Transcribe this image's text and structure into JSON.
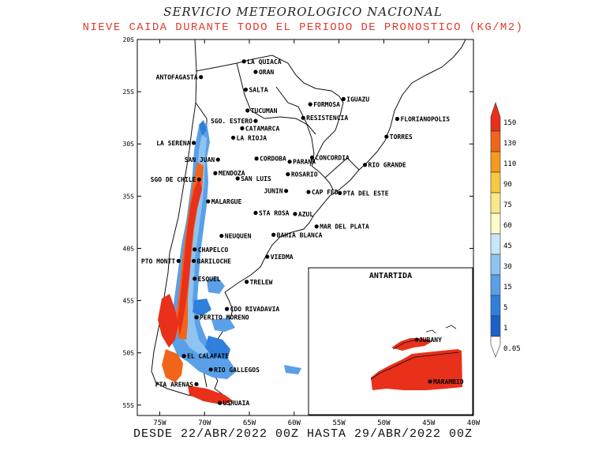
{
  "header": {
    "agency": "SERVICIO METEOROLOGICO NACIONAL",
    "product": "NIEVE CAIDA DURANTE TODO EL PERIODO DE PRONOSTICO (KG/M2)"
  },
  "footer": {
    "period": "DESDE 22/ABR/2022 00Z HASTA 29/ABR/2022 00Z"
  },
  "axes": {
    "lat_ticks": [
      "20S",
      "25S",
      "30S",
      "35S",
      "40S",
      "45S",
      "50S",
      "55S"
    ],
    "lon_ticks": [
      "75W",
      "70W",
      "65W",
      "60W",
      "55W",
      "50W",
      "45W",
      "40W"
    ]
  },
  "inset": {
    "title": "ANTARTIDA",
    "stations": [
      "JUBANY",
      "MARAMBIO"
    ]
  },
  "legend": {
    "labels": [
      "150",
      "130",
      "110",
      "90",
      "75",
      "60",
      "45",
      "30",
      "15",
      "5",
      "1",
      "0.05"
    ],
    "colors": [
      "#e8301a",
      "#f0651a",
      "#f59a1e",
      "#f9c843",
      "#fbe88a",
      "#fdfbc8",
      "#c8e6f8",
      "#8fc3f0",
      "#5aa0e8",
      "#2f7fdd",
      "#1c5fc8",
      "#ffffff"
    ]
  },
  "cities": [
    {
      "name": "ANTOFAGASTA",
      "lon": -70.4,
      "lat": -23.6
    },
    {
      "name": "LA QUIACA",
      "lon": -65.6,
      "lat": -22.1
    },
    {
      "name": "ORAN",
      "lon": -64.3,
      "lat": -23.1
    },
    {
      "name": "SALTA",
      "lon": -65.4,
      "lat": -24.8
    },
    {
      "name": "IGUAZU",
      "lon": -54.5,
      "lat": -25.7
    },
    {
      "name": "TUCUMAN",
      "lon": -65.2,
      "lat": -26.8
    },
    {
      "name": "FORMOSA",
      "lon": -58.2,
      "lat": -26.2
    },
    {
      "name": "SGO. ESTERO",
      "lon": -64.3,
      "lat": -27.8
    },
    {
      "name": "RESISTENCIA",
      "lon": -59.0,
      "lat": -27.5
    },
    {
      "name": "FLORIANOPOLIS",
      "lon": -48.5,
      "lat": -27.6
    },
    {
      "name": "CATAMARCA",
      "lon": -65.8,
      "lat": -28.5
    },
    {
      "name": "LA SERENA",
      "lon": -71.2,
      "lat": -29.9
    },
    {
      "name": "LA RIOJA",
      "lon": -66.8,
      "lat": -29.4
    },
    {
      "name": "TORRES",
      "lon": -49.7,
      "lat": -29.3
    },
    {
      "name": "CORDOBA",
      "lon": -64.2,
      "lat": -31.4
    },
    {
      "name": "CONCORDIA",
      "lon": -58.0,
      "lat": -31.3
    },
    {
      "name": "SAN JUAN",
      "lon": -68.5,
      "lat": -31.5
    },
    {
      "name": "PARANA",
      "lon": -60.5,
      "lat": -31.7
    },
    {
      "name": "RIO GRANDE",
      "lon": -52.1,
      "lat": -32.0
    },
    {
      "name": "MENDOZA",
      "lon": -68.8,
      "lat": -32.8
    },
    {
      "name": "ROSARIO",
      "lon": -60.7,
      "lat": -32.9
    },
    {
      "name": "SAN LUIS",
      "lon": -66.3,
      "lat": -33.3
    },
    {
      "name": "SGO DE CHILE",
      "lon": -70.6,
      "lat": -33.4
    },
    {
      "name": "JUNIN",
      "lon": -60.9,
      "lat": -34.5
    },
    {
      "name": "CAP FED",
      "lon": -58.4,
      "lat": -34.6
    },
    {
      "name": "PTA DEL ESTE",
      "lon": -54.9,
      "lat": -34.7
    },
    {
      "name": "MALARGUE",
      "lon": -69.6,
      "lat": -35.5
    },
    {
      "name": "STA ROSA",
      "lon": -64.3,
      "lat": -36.6
    },
    {
      "name": "AZUL",
      "lon": -59.9,
      "lat": -36.7
    },
    {
      "name": "MAR DEL PLATA",
      "lon": -57.5,
      "lat": -37.9
    },
    {
      "name": "NEUQUEN",
      "lon": -68.1,
      "lat": -38.8
    },
    {
      "name": "BAHIA BLANCA",
      "lon": -62.3,
      "lat": -38.7
    },
    {
      "name": "PTO MONTT",
      "lon": -72.9,
      "lat": -41.2
    },
    {
      "name": "CHAPELCO",
      "lon": -71.1,
      "lat": -40.1
    },
    {
      "name": "VIEDMA",
      "lon": -63.0,
      "lat": -40.8
    },
    {
      "name": "BARILOCHE",
      "lon": -71.2,
      "lat": -41.2
    },
    {
      "name": "ESQUEL",
      "lon": -71.1,
      "lat": -42.9
    },
    {
      "name": "TRELEW",
      "lon": -65.3,
      "lat": -43.2
    },
    {
      "name": "CDO RIVADAVIA",
      "lon": -67.5,
      "lat": -45.8
    },
    {
      "name": "PERITO MORENO",
      "lon": -70.9,
      "lat": -46.6
    },
    {
      "name": "EL CALAFATE",
      "lon": -72.3,
      "lat": -50.3
    },
    {
      "name": "RIO GALLEGOS",
      "lon": -69.3,
      "lat": -51.6
    },
    {
      "name": "PTA ARENAS",
      "lon": -70.9,
      "lat": -53.0
    },
    {
      "name": "USHUAIA",
      "lon": -68.3,
      "lat": -54.8
    }
  ]
}
